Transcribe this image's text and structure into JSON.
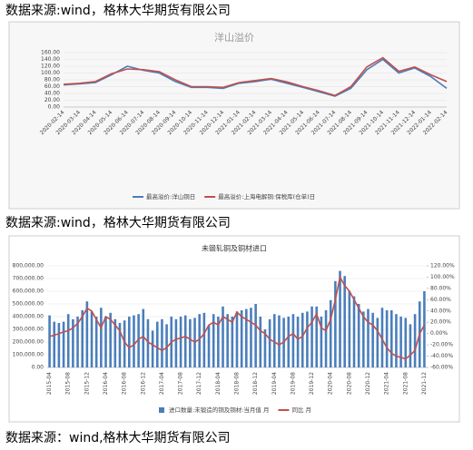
{
  "captions": [
    "数据来源:wind，格林大华期货有限公司",
    "数据来源:wind，格林大华期货有限公司",
    "数据来源：wind,格林大华期货有限公司"
  ],
  "chart_data": [
    {
      "type": "line",
      "title": "洋山溢价",
      "grid": true,
      "categories": [
        "2020-02-14",
        "2020-03-14",
        "2020-04-14",
        "2020-05-14",
        "2020-06-14",
        "2020-07-14",
        "2020-08-14",
        "2020-09-14",
        "2020-10-14",
        "2020-11-14",
        "2020-12-14",
        "2021-01-14",
        "2021-02-14",
        "2021-03-14",
        "2021-04-14",
        "2021-05-14",
        "2021-06-14",
        "2021-07-14",
        "2021-08-14",
        "2021-09-14",
        "2021-10-14",
        "2021-11-14",
        "2021-12-14",
        "2022-01-14",
        "2022-02-14"
      ],
      "ylim": [
        0,
        160
      ],
      "yticks": [
        {
          "value": 0,
          "label": "0.00"
        },
        {
          "value": 20,
          "label": "20.00"
        },
        {
          "value": 40,
          "label": "40.00"
        },
        {
          "value": 60,
          "label": "60.00"
        },
        {
          "value": 80,
          "label": "80.00"
        },
        {
          "value": 100,
          "label": "100.00"
        },
        {
          "value": 120,
          "label": "120.00"
        },
        {
          "value": 140,
          "label": "140.00"
        },
        {
          "value": 160,
          "label": "160.00"
        }
      ],
      "series": [
        {
          "name": "最高溢价:洋山铜日",
          "color": "#4a7ebb",
          "values": [
            65,
            68,
            72,
            95,
            120,
            108,
            100,
            75,
            58,
            58,
            55,
            70,
            75,
            82,
            70,
            58,
            45,
            32,
            55,
            110,
            140,
            100,
            115,
            90,
            55
          ]
        },
        {
          "name": "最高溢价:上海电解铜:保税库(仓单)日",
          "color": "#c0504d",
          "values": [
            67,
            70,
            75,
            98,
            112,
            110,
            104,
            80,
            60,
            60,
            58,
            72,
            78,
            84,
            74,
            60,
            48,
            34,
            60,
            118,
            145,
            105,
            118,
            95,
            75
          ]
        }
      ]
    },
    {
      "type": "bar",
      "title": "未锻轧铜及铜材进口",
      "grid": true,
      "categories": [
        "2015-04",
        null,
        null,
        null,
        "2015-08",
        null,
        null,
        null,
        "2015-12",
        null,
        null,
        null,
        "2016-04",
        null,
        null,
        null,
        "2016-08",
        null,
        null,
        null,
        "2016-12",
        null,
        null,
        null,
        "2017-04",
        null,
        null,
        null,
        "2017-08",
        null,
        null,
        null,
        "2017-12",
        null,
        null,
        null,
        "2018-04",
        null,
        null,
        null,
        "2018-08",
        null,
        null,
        null,
        "2018-12",
        null,
        null,
        null,
        "2019-04",
        null,
        null,
        null,
        "2019-08",
        null,
        null,
        null,
        "2019-12",
        null,
        null,
        null,
        "2020-04",
        null,
        null,
        null,
        "2020-08",
        null,
        null,
        null,
        "2020-12",
        null,
        null,
        null,
        "2021-04",
        null,
        null,
        null,
        "2021-08",
        null,
        null,
        null,
        "2021-12"
      ],
      "ylim": [
        0,
        800000
      ],
      "yticks": [
        {
          "value": 0,
          "label": "0.00"
        },
        {
          "value": 100000,
          "label": "100,000.00"
        },
        {
          "value": 200000,
          "label": "200,000.00"
        },
        {
          "value": 300000,
          "label": "300,000.00"
        },
        {
          "value": 400000,
          "label": "400,000.00"
        },
        {
          "value": 500000,
          "label": "500,000.00"
        },
        {
          "value": 600000,
          "label": "600,000.00"
        },
        {
          "value": 700000,
          "label": "700,000.00"
        },
        {
          "value": 800000,
          "label": "800,000.00"
        }
      ],
      "y2lim": [
        -60,
        120
      ],
      "y2ticks": [
        {
          "value": -60,
          "label": "-60.00%"
        },
        {
          "value": -40,
          "label": "-40.00%"
        },
        {
          "value": -20,
          "label": "-20.00%"
        },
        {
          "value": 0,
          "label": "0.00%"
        },
        {
          "value": 20,
          "label": "20.00%"
        },
        {
          "value": 40,
          "label": "40.00%"
        },
        {
          "value": 60,
          "label": "60.00%"
        },
        {
          "value": 80,
          "label": "80.00%"
        },
        {
          "value": 100,
          "label": "100.00%"
        },
        {
          "value": 120,
          "label": "120.00%"
        }
      ],
      "series": [
        {
          "name": "进口数量:未锻造的铜及铜材:当月值 月",
          "type": "bar",
          "color": "#4a7ebb",
          "values": [
            410000,
            360000,
            350000,
            360000,
            420000,
            380000,
            400000,
            450000,
            520000,
            440000,
            400000,
            470000,
            400000,
            430000,
            380000,
            350000,
            370000,
            400000,
            410000,
            420000,
            460000,
            380000,
            290000,
            360000,
            380000,
            340000,
            400000,
            380000,
            400000,
            410000,
            380000,
            390000,
            420000,
            430000,
            330000,
            420000,
            400000,
            480000,
            420000,
            400000,
            440000,
            450000,
            460000,
            470000,
            500000,
            400000,
            300000,
            380000,
            420000,
            410000,
            390000,
            400000,
            420000,
            400000,
            430000,
            440000,
            480000,
            480000,
            400000,
            450000,
            530000,
            680000,
            760000,
            720000,
            600000,
            560000,
            500000,
            440000,
            460000,
            430000,
            390000,
            470000,
            450000,
            450000,
            420000,
            400000,
            390000,
            340000,
            420000,
            520000,
            600000
          ]
        },
        {
          "name": "同比 月",
          "type": "line",
          "axis": "y2",
          "color": "#c0504d",
          "values": [
            -5,
            -3,
            0,
            3,
            5,
            10,
            18,
            30,
            45,
            40,
            25,
            10,
            30,
            25,
            15,
            5,
            -15,
            -25,
            -20,
            -10,
            -5,
            -15,
            -20,
            -25,
            -30,
            -25,
            -15,
            -10,
            -8,
            -5,
            -10,
            -15,
            -10,
            0,
            15,
            20,
            15,
            30,
            25,
            20,
            38,
            30,
            25,
            20,
            15,
            5,
            0,
            -10,
            -15,
            -20,
            -15,
            -5,
            0,
            -10,
            -5,
            10,
            20,
            35,
            10,
            5,
            25,
            60,
            100,
            85,
            75,
            60,
            45,
            30,
            20,
            15,
            5,
            -10,
            -25,
            -35,
            -40,
            -42,
            -45,
            -38,
            -30,
            0,
            15
          ]
        }
      ]
    }
  ]
}
